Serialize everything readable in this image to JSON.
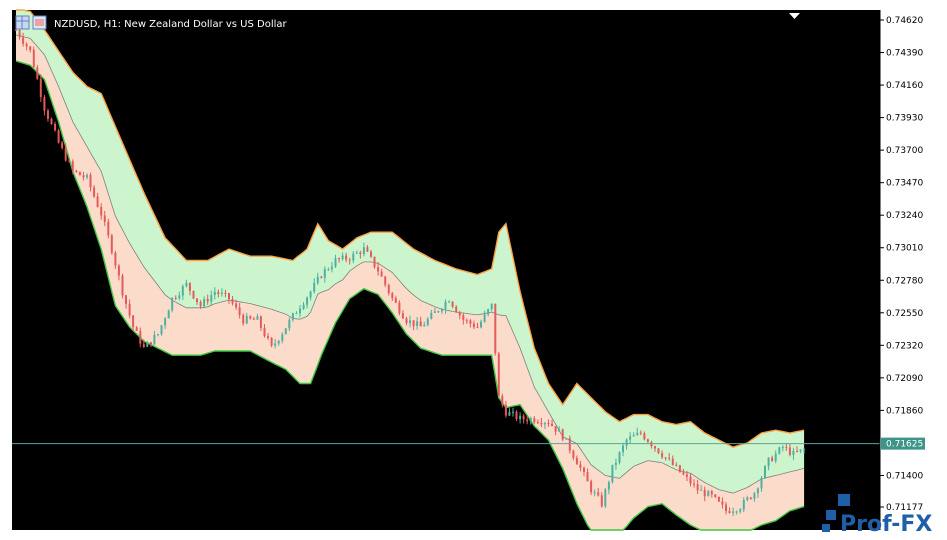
{
  "window": {
    "title": "NZDUSD, H1:  New Zealand Dollar vs US Dollar"
  },
  "logo": {
    "text": "Prof-FX"
  },
  "colors": {
    "background": "#000000",
    "bull": "#4fb0a2",
    "bear": "#e45a5a",
    "upper_fill": "#cdf5cd",
    "lower_fill": "#fbdccb",
    "band_upper_edge": "#ffa040",
    "band_lower_edge": "#40c840",
    "mid_line": "#808080",
    "price_line": "#5aa59a",
    "price_tag_bg": "#3c9587",
    "logo": "#1e5fa8"
  },
  "chart_data": {
    "type": "candlestick",
    "symbol": "NZDUSD",
    "timeframe": "H1",
    "ylim": [
      0.7108,
      0.7469
    ],
    "y_ticks": [
      "0.74620",
      "0.74390",
      "0.74160",
      "0.73930",
      "0.73700",
      "0.73470",
      "0.73240",
      "0.73010",
      "0.72780",
      "0.72550",
      "0.72320",
      "0.72090",
      "0.71860",
      "0.71625",
      "0.71400",
      "0.71177"
    ],
    "current_price": "0.71625",
    "candle_count": 150,
    "close_anchors": [
      [
        0,
        0.7455
      ],
      [
        4,
        0.744
      ],
      [
        8,
        0.74
      ],
      [
        12,
        0.7375
      ],
      [
        16,
        0.7355
      ],
      [
        20,
        0.735
      ],
      [
        24,
        0.7325
      ],
      [
        27,
        0.73
      ],
      [
        30,
        0.727
      ],
      [
        33,
        0.7245
      ],
      [
        36,
        0.723
      ],
      [
        40,
        0.724
      ],
      [
        44,
        0.7265
      ],
      [
        48,
        0.7275
      ],
      [
        52,
        0.726
      ],
      [
        56,
        0.727
      ],
      [
        60,
        0.7265
      ],
      [
        64,
        0.725
      ],
      [
        68,
        0.725
      ],
      [
        72,
        0.723
      ],
      [
        76,
        0.7245
      ],
      [
        80,
        0.726
      ],
      [
        83,
        0.727
      ],
      [
        86,
        0.7282
      ],
      [
        90,
        0.7292
      ],
      [
        94,
        0.7294
      ],
      [
        98,
        0.73
      ],
      [
        102,
        0.7285
      ],
      [
        106,
        0.7265
      ],
      [
        110,
        0.725
      ],
      [
        114,
        0.7245
      ],
      [
        118,
        0.7255
      ],
      [
        122,
        0.7265
      ],
      [
        126,
        0.725
      ],
      [
        130,
        0.7245
      ],
      [
        134,
        0.726
      ],
      [
        136,
        0.7195
      ],
      [
        138,
        0.7185
      ],
      [
        142,
        0.718
      ],
      [
        146,
        0.718
      ],
      [
        150,
        0.7178
      ]
    ],
    "close_anchors_tail": [
      [
        154,
        0.7168
      ],
      [
        158,
        0.715
      ],
      [
        162,
        0.713
      ],
      [
        165,
        0.712
      ],
      [
        168,
        0.7145
      ],
      [
        172,
        0.7165
      ],
      [
        176,
        0.717
      ],
      [
        180,
        0.716
      ],
      [
        184,
        0.715
      ],
      [
        188,
        0.714
      ],
      [
        192,
        0.713
      ],
      [
        196,
        0.7125
      ],
      [
        200,
        0.7115
      ],
      [
        204,
        0.7118
      ],
      [
        208,
        0.7128
      ],
      [
        212,
        0.715
      ],
      [
        216,
        0.716
      ],
      [
        219,
        0.7155
      ],
      [
        222,
        0.7158
      ]
    ],
    "band_upper_anchors": [
      [
        0,
        0.747
      ],
      [
        4,
        0.7468
      ],
      [
        8,
        0.7455
      ],
      [
        12,
        0.744
      ],
      [
        16,
        0.7425
      ],
      [
        20,
        0.7415
      ],
      [
        24,
        0.741
      ],
      [
        30,
        0.7375
      ],
      [
        36,
        0.734
      ],
      [
        42,
        0.7308
      ],
      [
        48,
        0.7292
      ],
      [
        54,
        0.7292
      ],
      [
        60,
        0.73
      ],
      [
        66,
        0.7295
      ],
      [
        72,
        0.7295
      ],
      [
        78,
        0.7292
      ],
      [
        82,
        0.73
      ],
      [
        85,
        0.7318
      ],
      [
        88,
        0.7306
      ],
      [
        92,
        0.73
      ],
      [
        96,
        0.7308
      ],
      [
        100,
        0.7312
      ],
      [
        106,
        0.7312
      ],
      [
        112,
        0.73
      ],
      [
        118,
        0.7292
      ],
      [
        124,
        0.7286
      ],
      [
        130,
        0.7282
      ],
      [
        134,
        0.7286
      ],
      [
        136,
        0.7312
      ],
      [
        138,
        0.7318
      ],
      [
        142,
        0.727
      ],
      [
        146,
        0.723
      ],
      [
        150,
        0.7205
      ],
      [
        154,
        0.719
      ],
      [
        158,
        0.7205
      ],
      [
        162,
        0.7195
      ],
      [
        166,
        0.7185
      ],
      [
        170,
        0.7178
      ],
      [
        174,
        0.7183
      ],
      [
        178,
        0.7183
      ],
      [
        182,
        0.7178
      ],
      [
        186,
        0.7176
      ],
      [
        190,
        0.7178
      ],
      [
        194,
        0.717
      ],
      [
        198,
        0.7165
      ],
      [
        202,
        0.716
      ],
      [
        206,
        0.7163
      ],
      [
        210,
        0.717
      ],
      [
        214,
        0.7172
      ],
      [
        218,
        0.717
      ],
      [
        222,
        0.7172
      ]
    ],
    "band_lower_anchors": [
      [
        0,
        0.7433
      ],
      [
        4,
        0.743
      ],
      [
        8,
        0.742
      ],
      [
        12,
        0.739
      ],
      [
        16,
        0.7355
      ],
      [
        20,
        0.733
      ],
      [
        24,
        0.73
      ],
      [
        28,
        0.726
      ],
      [
        32,
        0.7245
      ],
      [
        36,
        0.7235
      ],
      [
        40,
        0.723
      ],
      [
        44,
        0.7225
      ],
      [
        48,
        0.7225
      ],
      [
        52,
        0.7225
      ],
      [
        56,
        0.7228
      ],
      [
        60,
        0.7228
      ],
      [
        66,
        0.7228
      ],
      [
        72,
        0.722
      ],
      [
        76,
        0.7215
      ],
      [
        80,
        0.7205
      ],
      [
        83,
        0.7205
      ],
      [
        86,
        0.7225
      ],
      [
        90,
        0.7248
      ],
      [
        94,
        0.7265
      ],
      [
        98,
        0.7272
      ],
      [
        102,
        0.7268
      ],
      [
        106,
        0.7255
      ],
      [
        110,
        0.724
      ],
      [
        114,
        0.723
      ],
      [
        120,
        0.7225
      ],
      [
        126,
        0.7225
      ],
      [
        130,
        0.7225
      ],
      [
        134,
        0.7225
      ],
      [
        136,
        0.7195
      ],
      [
        138,
        0.7188
      ],
      [
        142,
        0.719
      ],
      [
        146,
        0.7175
      ],
      [
        150,
        0.7165
      ],
      [
        154,
        0.7145
      ],
      [
        158,
        0.712
      ],
      [
        162,
        0.71
      ],
      [
        166,
        0.7095
      ],
      [
        170,
        0.7098
      ],
      [
        174,
        0.711
      ],
      [
        178,
        0.7118
      ],
      [
        182,
        0.712
      ],
      [
        186,
        0.7112
      ],
      [
        190,
        0.7105
      ],
      [
        194,
        0.71
      ],
      [
        198,
        0.7095
      ],
      [
        202,
        0.7095
      ],
      [
        206,
        0.71
      ],
      [
        210,
        0.7105
      ],
      [
        214,
        0.7108
      ],
      [
        218,
        0.7115
      ],
      [
        222,
        0.7118
      ]
    ]
  }
}
